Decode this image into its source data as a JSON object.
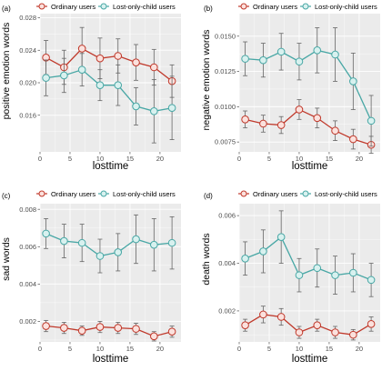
{
  "colors": {
    "ordinary": "#c0392b",
    "lost_only_child": "#48a7a5",
    "ordinary_marker_fill": "#fbe1dd",
    "lost_only_child_marker_fill": "#d8f1ef",
    "error_bar": "#666666",
    "panel_background": "#ebebeb",
    "grid": "#ffffff"
  },
  "chart_data": [
    {
      "type": "line",
      "panel": "(a)",
      "xlabel": "losttime",
      "ylabel": "positive emotion words",
      "legend": [
        "Ordinary users",
        "Lost-only-child users"
      ],
      "legend_position": "top",
      "grid": true,
      "xlim": [
        0,
        23.5
      ],
      "ylim": [
        0.0115,
        0.0285
      ],
      "x_ticks": [
        0,
        5,
        10,
        15,
        20
      ],
      "x_tick_labels": [
        "0",
        "5",
        "10",
        "15",
        "20"
      ],
      "y_ticks": [
        0.016,
        0.02,
        0.024,
        0.028
      ],
      "y_tick_labels": [
        "0.016",
        "0.020",
        "0.024",
        "0.028"
      ],
      "x": [
        1,
        4,
        7,
        10,
        13,
        16,
        19,
        22
      ],
      "series": [
        {
          "name": "Ordinary users",
          "values": [
            0.0231,
            0.0219,
            0.0242,
            0.023,
            0.0233,
            0.0225,
            0.0219,
            0.0202
          ],
          "err_low": [
            0.021,
            0.0198,
            0.0216,
            0.0205,
            0.0212,
            0.0203,
            0.0197,
            0.0182
          ],
          "err_high": [
            0.0252,
            0.024,
            0.0268,
            0.0255,
            0.0254,
            0.0247,
            0.0241,
            0.0222
          ]
        },
        {
          "name": "Lost-only-child users",
          "values": [
            0.0206,
            0.0209,
            0.0216,
            0.0197,
            0.0197,
            0.0171,
            0.0165,
            0.0169
          ],
          "err_low": [
            0.0184,
            0.0188,
            0.0196,
            0.0178,
            0.0172,
            0.0148,
            0.0126,
            0.013
          ],
          "err_high": [
            0.0228,
            0.023,
            0.0236,
            0.0216,
            0.0222,
            0.0194,
            0.0204,
            0.0208
          ]
        }
      ]
    },
    {
      "type": "line",
      "panel": "(b)",
      "xlabel": "losttime",
      "ylabel": "negative emotion words",
      "legend": [
        "Ordinary users",
        "Lost-only-child users"
      ],
      "legend_position": "top",
      "grid": true,
      "xlim": [
        0,
        23.5
      ],
      "ylim": [
        0.0068,
        0.0166
      ],
      "x_ticks": [
        0,
        5,
        10,
        15,
        20
      ],
      "x_tick_labels": [
        "0",
        "5",
        "10",
        "15",
        "20"
      ],
      "y_ticks": [
        0.0075,
        0.01,
        0.0125,
        0.015
      ],
      "y_tick_labels": [
        "0.0075",
        "0.0100",
        "0.0125",
        "0.0150"
      ],
      "x": [
        1,
        4,
        7,
        10,
        13,
        16,
        19,
        22
      ],
      "series": [
        {
          "name": "Ordinary users",
          "values": [
            0.0091,
            0.0088,
            0.0087,
            0.0098,
            0.0092,
            0.0083,
            0.0077,
            0.0073
          ],
          "err_low": [
            0.0085,
            0.0082,
            0.0081,
            0.0091,
            0.0085,
            0.0076,
            0.007,
            0.0067
          ],
          "err_high": [
            0.0097,
            0.0094,
            0.0093,
            0.0105,
            0.0099,
            0.009,
            0.0084,
            0.0079
          ]
        },
        {
          "name": "Lost-only-child users",
          "values": [
            0.0134,
            0.0133,
            0.0139,
            0.0132,
            0.014,
            0.0137,
            0.0118,
            0.009
          ],
          "err_low": [
            0.0122,
            0.0121,
            0.0126,
            0.0119,
            0.0124,
            0.0118,
            0.0098,
            0.0072
          ],
          "err_high": [
            0.0146,
            0.0145,
            0.0152,
            0.0145,
            0.0156,
            0.0156,
            0.0138,
            0.0108
          ]
        }
      ]
    },
    {
      "type": "line",
      "panel": "(c)",
      "xlabel": "losttime",
      "ylabel": "sad words",
      "legend": [
        "Ordinary users",
        "Lost-only-child users"
      ],
      "legend_position": "top",
      "grid": true,
      "xlim": [
        0,
        23.5
      ],
      "ylim": [
        0.0009,
        0.0083
      ],
      "x_ticks": [
        0,
        5,
        10,
        15,
        20
      ],
      "x_tick_labels": [
        "0",
        "5",
        "10",
        "15",
        "20"
      ],
      "y_ticks": [
        0.002,
        0.004,
        0.006,
        0.008
      ],
      "y_tick_labels": [
        "0.002",
        "0.004",
        "0.006",
        "0.008"
      ],
      "x": [
        1,
        4,
        7,
        10,
        13,
        16,
        19,
        22
      ],
      "series": [
        {
          "name": "Ordinary users",
          "values": [
            0.00175,
            0.00165,
            0.0015,
            0.0017,
            0.00165,
            0.0016,
            0.0012,
            0.00145
          ],
          "err_low": [
            0.00145,
            0.00135,
            0.00125,
            0.0014,
            0.00135,
            0.0013,
            0.00095,
            0.00115
          ],
          "err_high": [
            0.00205,
            0.00195,
            0.00175,
            0.002,
            0.00195,
            0.0019,
            0.00145,
            0.00175
          ]
        },
        {
          "name": "Lost-only-child users",
          "values": [
            0.0067,
            0.0063,
            0.0062,
            0.0055,
            0.0057,
            0.0064,
            0.0061,
            0.0062
          ],
          "err_low": [
            0.0059,
            0.0054,
            0.0052,
            0.0046,
            0.0047,
            0.0051,
            0.0047,
            0.0048
          ],
          "err_high": [
            0.0075,
            0.0072,
            0.0072,
            0.0064,
            0.0067,
            0.0077,
            0.0075,
            0.0076
          ]
        }
      ]
    },
    {
      "type": "line",
      "panel": "(d)",
      "xlabel": "losttime",
      "ylabel": "death words",
      "legend": [
        "Ordinary users",
        "Lost-only-child users"
      ],
      "legend_position": "top",
      "grid": true,
      "xlim": [
        0,
        23.5
      ],
      "ylim": [
        0.0007,
        0.0065
      ],
      "x_ticks": [
        0,
        5,
        10,
        15,
        20
      ],
      "x_tick_labels": [
        "0",
        "5",
        "10",
        "15",
        "20"
      ],
      "y_ticks": [
        0.002,
        0.004,
        0.006
      ],
      "y_tick_labels": [
        "0.002",
        "0.004",
        "0.006"
      ],
      "x": [
        1,
        4,
        7,
        10,
        13,
        16,
        19,
        22
      ],
      "series": [
        {
          "name": "Ordinary users",
          "values": [
            0.0014,
            0.00185,
            0.00175,
            0.0011,
            0.0014,
            0.0011,
            0.001,
            0.00145
          ],
          "err_low": [
            0.00115,
            0.0015,
            0.0014,
            0.00085,
            0.00115,
            0.00085,
            0.00078,
            0.00115
          ],
          "err_high": [
            0.00165,
            0.0022,
            0.0021,
            0.00135,
            0.00165,
            0.00135,
            0.00122,
            0.00175
          ]
        },
        {
          "name": "Lost-only-child users",
          "values": [
            0.0042,
            0.0045,
            0.0051,
            0.0035,
            0.0038,
            0.0035,
            0.0036,
            0.0033
          ],
          "err_low": [
            0.0035,
            0.0036,
            0.004,
            0.0028,
            0.003,
            0.0027,
            0.0028,
            0.0026
          ],
          "err_high": [
            0.0049,
            0.0054,
            0.0062,
            0.0042,
            0.0046,
            0.0043,
            0.0044,
            0.004
          ]
        }
      ]
    }
  ]
}
